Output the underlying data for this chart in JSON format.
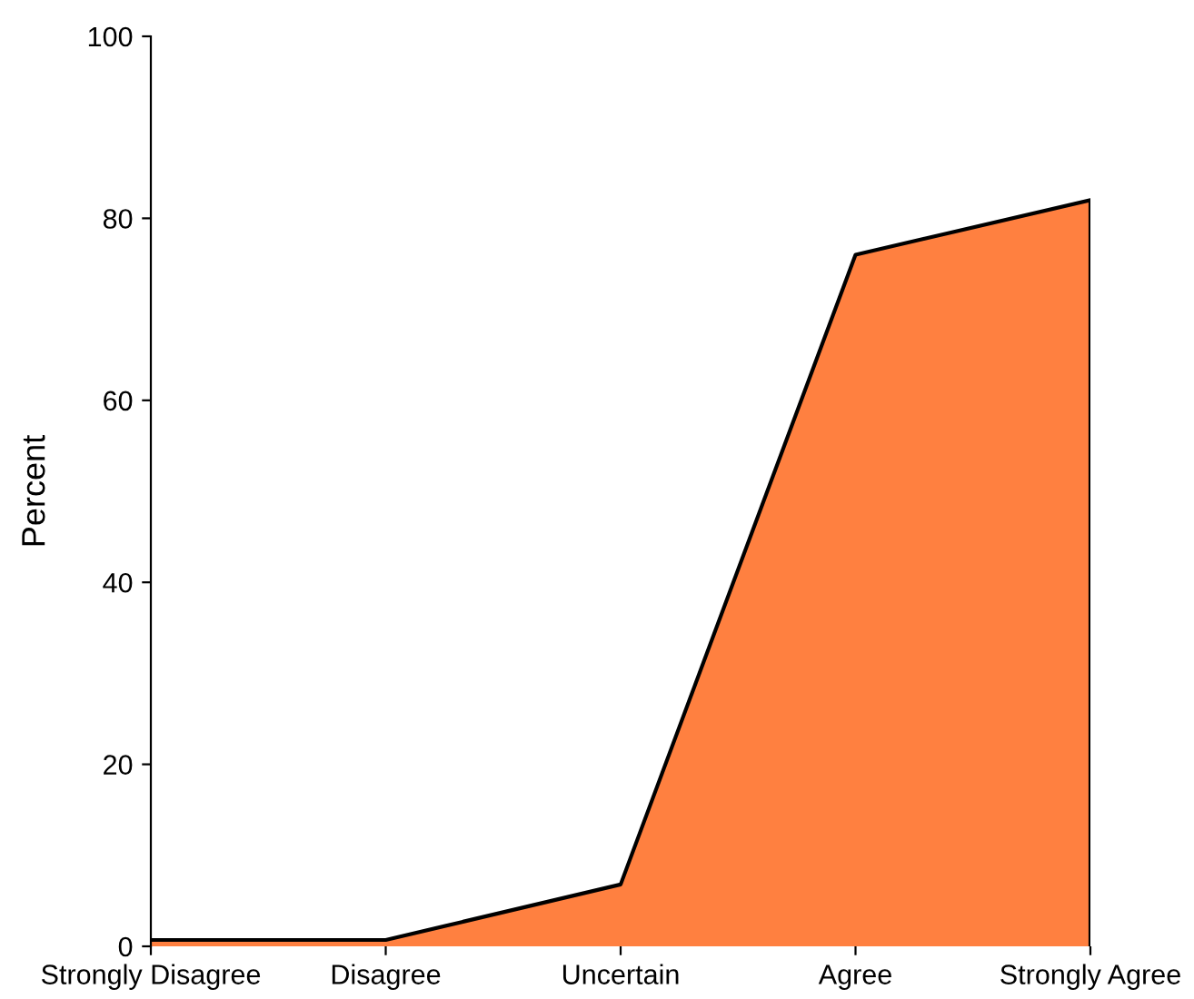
{
  "chart_data": {
    "type": "area",
    "ylabel": "Percent",
    "categories": [
      "Strongly Disagree",
      "Disagree",
      "Uncertain",
      "Agree",
      "Strongly Agree"
    ],
    "series": [
      {
        "color": "#ff8040",
        "values": [
          0.7,
          0.7,
          6.8,
          76,
          82
        ]
      }
    ],
    "ylim": [
      0,
      100
    ],
    "yticks": [
      0,
      20,
      40,
      60,
      80,
      100
    ]
  }
}
